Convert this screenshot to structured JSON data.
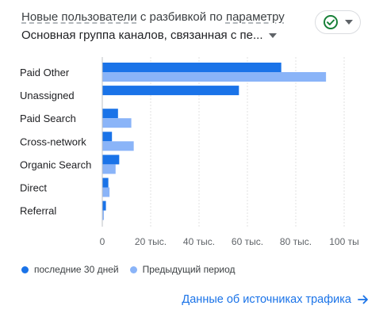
{
  "header": {
    "title_part1": "Новые пользователи",
    "title_part2": " с разбивкой по ",
    "title_part3": "параметру",
    "dimension": "Основная группа каналов, связанная с пе..."
  },
  "status": {
    "icon": "check-circle-icon",
    "color": "#188038"
  },
  "colors": {
    "current": "#1a73e8",
    "previous": "#8ab4f8"
  },
  "chart_data": {
    "type": "bar",
    "orientation": "horizontal",
    "categories": [
      "Paid Other",
      "Unassigned",
      "Paid Search",
      "Cross-network",
      "Organic Search",
      "Direct",
      "Referral"
    ],
    "series": [
      {
        "name": "последние 30 дней",
        "values": [
          74000,
          56500,
          6500,
          4000,
          7000,
          2500,
          1500
        ]
      },
      {
        "name": "Предыдущий период",
        "values": [
          92500,
          0,
          12000,
          13000,
          5500,
          3000,
          500
        ]
      }
    ],
    "xlim": [
      0,
      100000
    ],
    "x_ticks": [
      0,
      20000,
      40000,
      60000,
      80000,
      100000
    ],
    "x_tick_labels": [
      "0",
      "20 тыс.",
      "40 тыс.",
      "60 тыс.",
      "80 тыс.",
      "100 ты"
    ],
    "legend_position": "bottom-left",
    "grid": true
  },
  "link": {
    "label": "Данные об источниках трафика"
  }
}
